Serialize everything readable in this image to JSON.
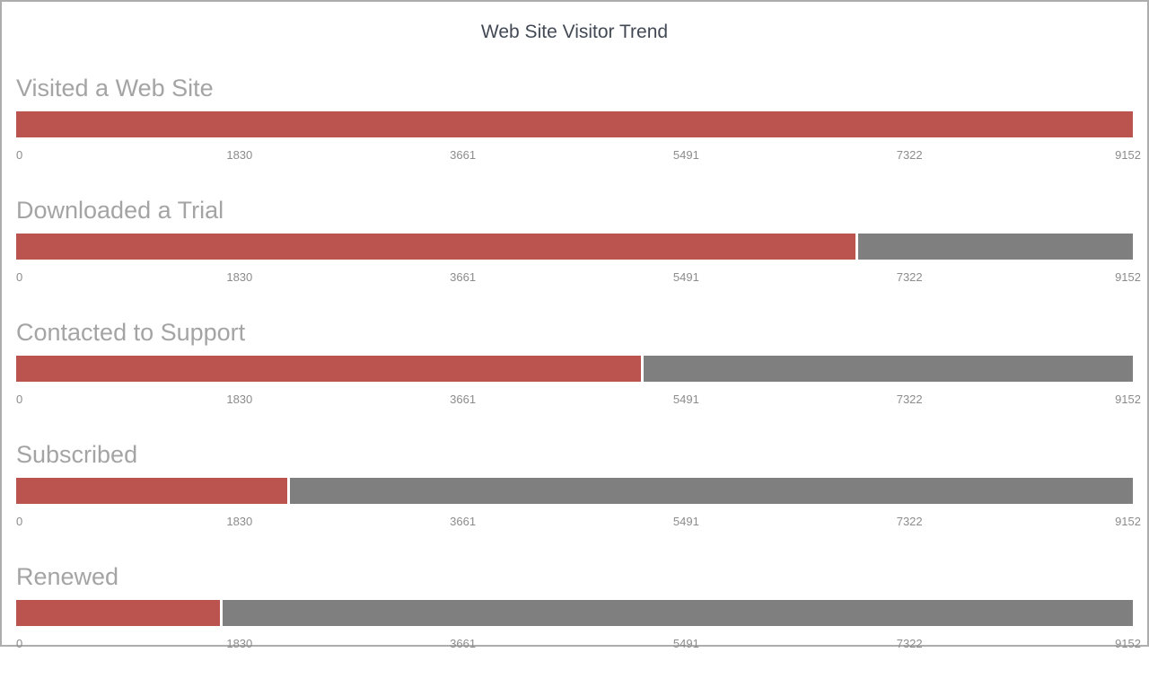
{
  "window": {
    "background": "#ffffff",
    "frame_border_color": "#adadad"
  },
  "title": "Web Site Visitor Trend",
  "colors": {
    "title_text": "#424954",
    "section_label_text": "#a4a4a4",
    "axis_label_text": "#8c8c8c",
    "value_bar": "#bb544e",
    "remainder_bar": "#7f7f7f"
  },
  "chart_data": {
    "type": "bar",
    "subtype": "horizontal-bullet-funnel",
    "orientation": "horizontal",
    "title": "Web Site Visitor Trend",
    "categories": [
      "Visited a Web Site",
      "Downloaded a Trial",
      "Contacted to Support",
      "Subscribed",
      "Renewed"
    ],
    "values": [
      9152,
      6879,
      5121,
      2224,
      1670
    ],
    "max": 9152,
    "xlim": [
      0,
      9152
    ],
    "axis_ticks": [
      "0",
      "1830",
      "3661",
      "5491",
      "7322",
      "9152"
    ],
    "axis_tick_values": [
      0,
      1830,
      3661,
      5491,
      7322,
      9152
    ],
    "grid": false,
    "legend": "none",
    "value_color": "#bb544e",
    "remainder_color": "#7f7f7f"
  }
}
